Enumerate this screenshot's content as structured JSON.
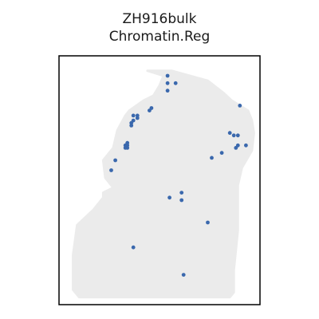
{
  "chart_data": {
    "type": "scatter",
    "title": "ZH916bulk",
    "subtitle": "Chromatin.Reg",
    "xlabel": "",
    "ylabel": "",
    "grid": false,
    "colors": {
      "tissue": "#ebebeb",
      "spot": "#3a68ad",
      "frame": "#000000"
    },
    "tissue_outline": [
      [
        0.44,
        0.94
      ],
      [
        0.56,
        0.94
      ],
      [
        0.65,
        0.92
      ],
      [
        0.74,
        0.9
      ],
      [
        0.82,
        0.85
      ],
      [
        0.86,
        0.82
      ],
      [
        0.94,
        0.78
      ],
      [
        0.96,
        0.74
      ],
      [
        0.97,
        0.69
      ],
      [
        0.96,
        0.62
      ],
      [
        0.91,
        0.55
      ],
      [
        0.89,
        0.48
      ],
      [
        0.89,
        0.4
      ],
      [
        0.89,
        0.3
      ],
      [
        0.88,
        0.22
      ],
      [
        0.87,
        0.14
      ],
      [
        0.87,
        0.05
      ],
      [
        0.85,
        0.03
      ],
      [
        0.1,
        0.03
      ],
      [
        0.07,
        0.06
      ],
      [
        0.07,
        0.2
      ],
      [
        0.09,
        0.32
      ],
      [
        0.17,
        0.38
      ],
      [
        0.22,
        0.43
      ],
      [
        0.22,
        0.45
      ],
      [
        0.27,
        0.47
      ],
      [
        0.23,
        0.51
      ],
      [
        0.22,
        0.58
      ],
      [
        0.27,
        0.63
      ],
      [
        0.29,
        0.7
      ],
      [
        0.33,
        0.76
      ],
      [
        0.35,
        0.78
      ],
      [
        0.42,
        0.82
      ],
      [
        0.47,
        0.84
      ],
      [
        0.5,
        0.88
      ],
      [
        0.52,
        0.92
      ]
    ],
    "points": [
      {
        "x": 0.54,
        "y": 0.92
      },
      {
        "x": 0.54,
        "y": 0.89
      },
      {
        "x": 0.58,
        "y": 0.89
      },
      {
        "x": 0.54,
        "y": 0.86
      },
      {
        "x": 0.9,
        "y": 0.8
      },
      {
        "x": 0.46,
        "y": 0.79
      },
      {
        "x": 0.45,
        "y": 0.78
      },
      {
        "x": 0.37,
        "y": 0.76
      },
      {
        "x": 0.39,
        "y": 0.76
      },
      {
        "x": 0.37,
        "y": 0.74
      },
      {
        "x": 0.39,
        "y": 0.75
      },
      {
        "x": 0.36,
        "y": 0.73
      },
      {
        "x": 0.36,
        "y": 0.72
      },
      {
        "x": 0.85,
        "y": 0.69
      },
      {
        "x": 0.87,
        "y": 0.68
      },
      {
        "x": 0.89,
        "y": 0.68
      },
      {
        "x": 0.34,
        "y": 0.65
      },
      {
        "x": 0.33,
        "y": 0.64
      },
      {
        "x": 0.34,
        "y": 0.64
      },
      {
        "x": 0.33,
        "y": 0.63
      },
      {
        "x": 0.34,
        "y": 0.63
      },
      {
        "x": 0.93,
        "y": 0.64
      },
      {
        "x": 0.89,
        "y": 0.64
      },
      {
        "x": 0.88,
        "y": 0.63
      },
      {
        "x": 0.81,
        "y": 0.61
      },
      {
        "x": 0.76,
        "y": 0.59
      },
      {
        "x": 0.28,
        "y": 0.58
      },
      {
        "x": 0.26,
        "y": 0.54
      },
      {
        "x": 0.61,
        "y": 0.45
      },
      {
        "x": 0.55,
        "y": 0.43
      },
      {
        "x": 0.61,
        "y": 0.42
      },
      {
        "x": 0.74,
        "y": 0.33
      },
      {
        "x": 0.37,
        "y": 0.23
      },
      {
        "x": 0.62,
        "y": 0.12
      }
    ],
    "xlim": [
      0,
      1
    ],
    "ylim": [
      0,
      1
    ]
  }
}
